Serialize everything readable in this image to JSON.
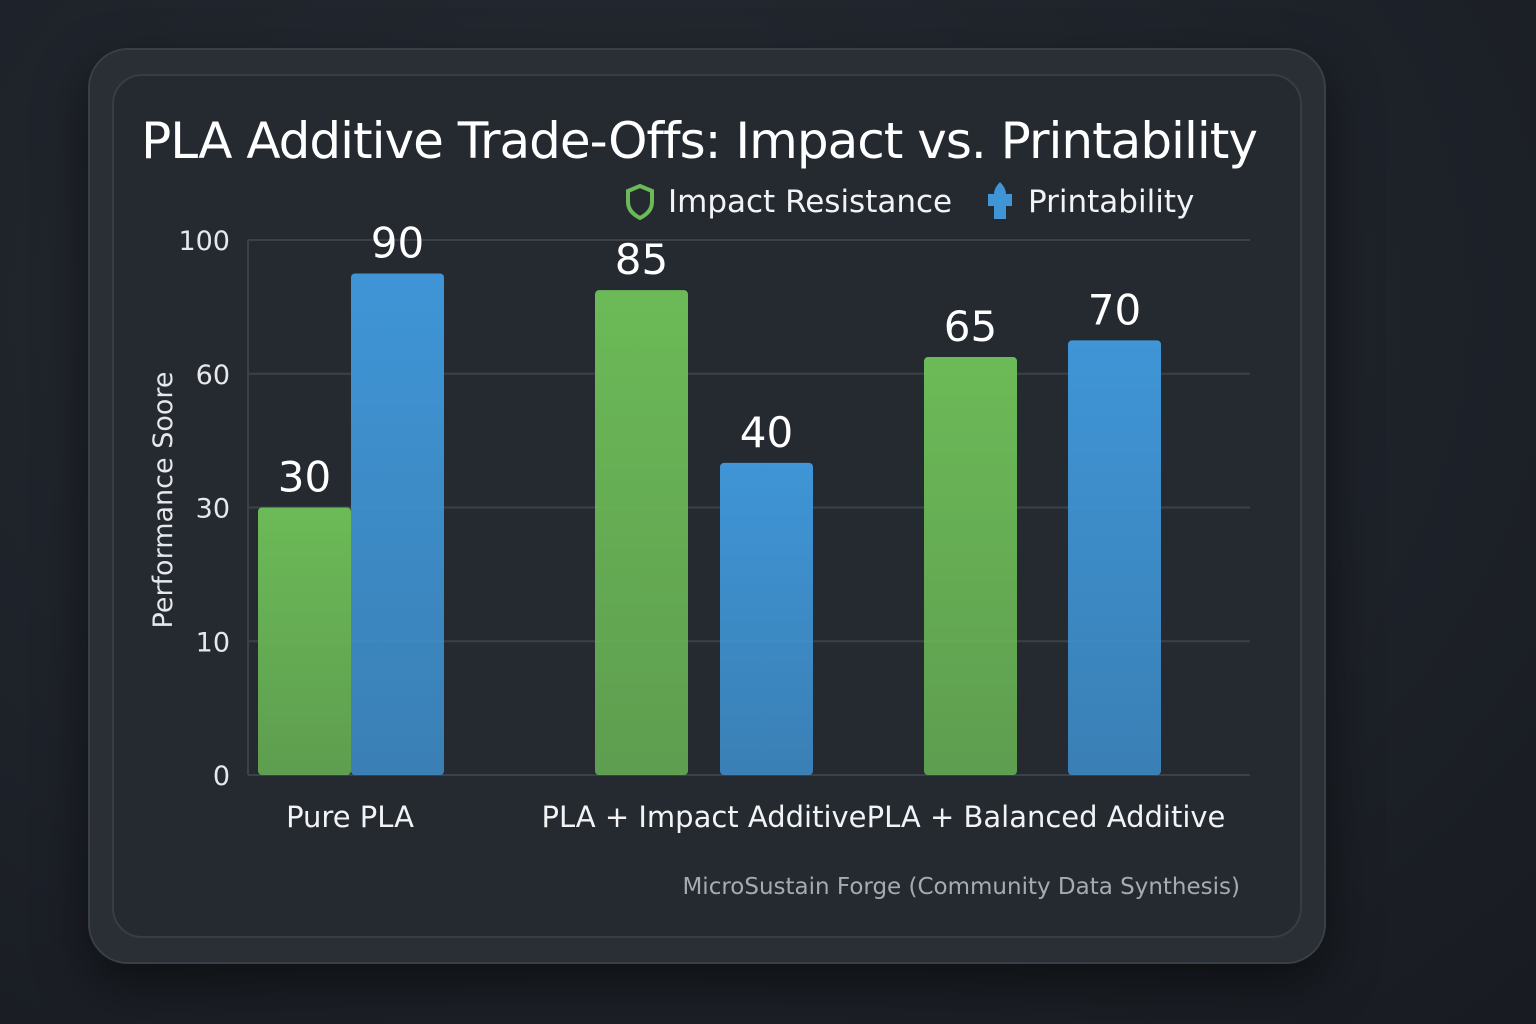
{
  "chart_data": {
    "type": "bar",
    "title": "PLA Additive Trade-Offs: Impact vs. Printability",
    "ylabel": "Performance Soore",
    "xlabel": "",
    "yticks": [
      0,
      10,
      30,
      60,
      100
    ],
    "ylim": [
      0,
      100
    ],
    "y_scale": "non-uniform (ticks evenly spaced)",
    "grid": true,
    "legend_position": "top-right",
    "categories": [
      "Pure PLA",
      "PLA + Impact Additive",
      "PLA + Balanced Additive"
    ],
    "series": [
      {
        "name": "Impact Resistance",
        "values": [
          30,
          85,
          65
        ],
        "color": "#6cba57",
        "icon": "shield-icon"
      },
      {
        "name": "Printability",
        "values": [
          90,
          40,
          70
        ],
        "color": "#3f95d6",
        "icon": "plus-drop-icon"
      }
    ]
  },
  "footer": "MicroSustain Forge (Community Data Synthesis)"
}
